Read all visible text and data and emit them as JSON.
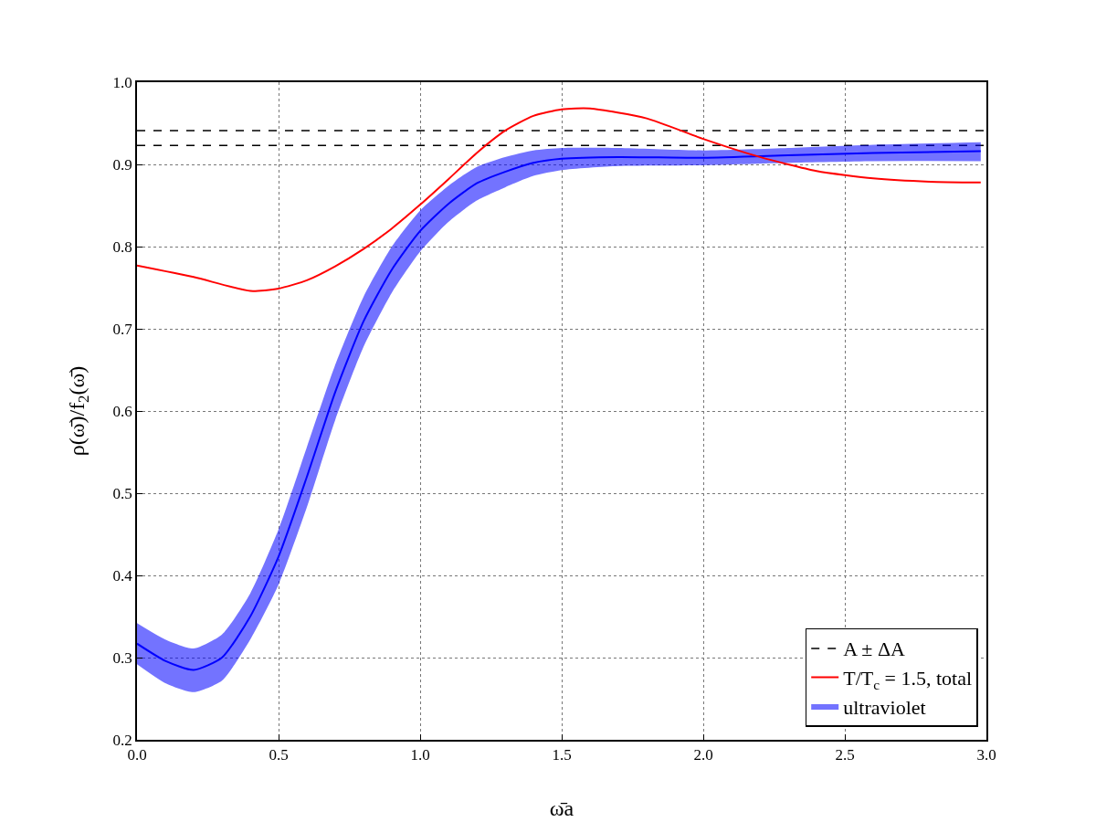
{
  "chart_data": {
    "type": "line",
    "xlabel": "ω̄a",
    "ylabel": "ρ(ω̄)/f$_{2}$(ω̄)",
    "xlim": [
      0,
      3
    ],
    "ylim": [
      0.2,
      1.0
    ],
    "xticks": [
      {
        "value": 0,
        "label": "0.0"
      },
      0.5,
      {
        "value": 1,
        "label": "1.0"
      },
      1.5,
      {
        "value": 2,
        "label": "2.0"
      },
      2.5,
      {
        "value": 3,
        "label": "3.0"
      }
    ],
    "yticks": [
      0.2,
      0.3,
      0.4,
      0.5,
      0.6,
      0.7,
      0.8,
      0.9,
      {
        "value": 1,
        "label": "1.0"
      }
    ],
    "grid": true,
    "legend": "bottom right",
    "line_style": "solid",
    "marker": "none",
    "ref_lines": [
      {
        "axis": "y",
        "value": 0.941,
        "label": "A ± ΔA",
        "color": "#000000",
        "line_style": "dashed"
      },
      {
        "axis": "y",
        "value": 0.923,
        "color": "#000000",
        "line_style": "dashed"
      }
    ],
    "series": [
      {
        "name": "T/T$_{c}$ = 1.5, total",
        "color": "#ff0000",
        "x": [
          0,
          0.2,
          0.4,
          0.5,
          0.6,
          0.7,
          0.8,
          0.9,
          1.0,
          1.1,
          1.2,
          1.3,
          1.4,
          1.5,
          1.6,
          1.8,
          2.0,
          2.2,
          2.4,
          2.6,
          2.8,
          2.98
        ],
        "values": [
          0.777,
          0.763,
          0.746,
          0.749,
          0.759,
          0.776,
          0.797,
          0.822,
          0.851,
          0.882,
          0.914,
          0.941,
          0.959,
          0.967,
          0.968,
          0.956,
          0.931,
          0.909,
          0.892,
          0.883,
          0.879,
          0.878
        ]
      },
      {
        "name": "ultraviolet",
        "color": "#0000ff",
        "x": [
          0,
          0.1,
          0.2,
          0.3,
          0.4,
          0.5,
          0.6,
          0.7,
          0.8,
          0.9,
          1.0,
          1.1,
          1.2,
          1.3,
          1.4,
          1.5,
          1.7,
          2.0,
          2.3,
          2.6,
          2.98
        ],
        "values": [
          0.317,
          0.296,
          0.285,
          0.3,
          0.35,
          0.423,
          0.52,
          0.623,
          0.709,
          0.772,
          0.819,
          0.852,
          0.877,
          0.891,
          0.902,
          0.907,
          0.909,
          0.908,
          0.911,
          0.914,
          0.916
        ],
        "lower": [
          0.292,
          0.269,
          0.258,
          0.272,
          0.322,
          0.389,
          0.483,
          0.589,
          0.678,
          0.744,
          0.794,
          0.83,
          0.856,
          0.872,
          0.886,
          0.893,
          0.898,
          0.899,
          0.902,
          0.904,
          0.904
        ],
        "upper": [
          0.342,
          0.322,
          0.311,
          0.328,
          0.378,
          0.456,
          0.556,
          0.656,
          0.739,
          0.8,
          0.844,
          0.874,
          0.897,
          0.909,
          0.917,
          0.92,
          0.92,
          0.917,
          0.92,
          0.924,
          0.927
        ]
      }
    ]
  }
}
